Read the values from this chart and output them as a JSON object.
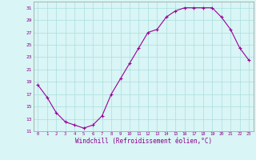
{
  "x": [
    0,
    1,
    2,
    3,
    4,
    5,
    6,
    7,
    8,
    9,
    10,
    11,
    12,
    13,
    14,
    15,
    16,
    17,
    18,
    19,
    20,
    21,
    22,
    23
  ],
  "y": [
    18.5,
    16.5,
    14.0,
    12.5,
    12.0,
    11.5,
    12.0,
    13.5,
    17.0,
    19.5,
    22.0,
    24.5,
    27.0,
    27.5,
    29.5,
    30.5,
    31.0,
    31.0,
    31.0,
    31.0,
    29.5,
    27.5,
    24.5,
    22.5
  ],
  "line_color": "#990099",
  "marker": "+",
  "marker_size": 3,
  "bg_color": "#d9f5f5",
  "grid_color": "#aadddd",
  "tick_label_color": "#880088",
  "xlabel": "Windchill (Refroidissement éolien,°C)",
  "xlabel_color": "#880088",
  "ylim": [
    11,
    32
  ],
  "yticks": [
    11,
    13,
    15,
    17,
    19,
    21,
    23,
    25,
    27,
    29,
    31
  ],
  "xticks": [
    0,
    1,
    2,
    3,
    4,
    5,
    6,
    7,
    8,
    9,
    10,
    11,
    12,
    13,
    14,
    15,
    16,
    17,
    18,
    19,
    20,
    21,
    22,
    23
  ],
  "title_color": "#880088",
  "title_fontsize": 6
}
